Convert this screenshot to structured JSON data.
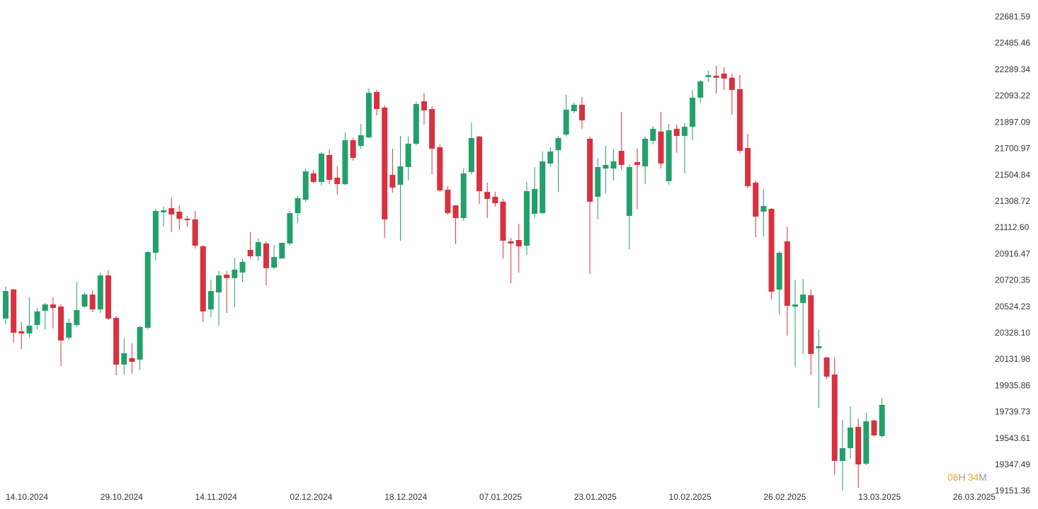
{
  "chart_data": {
    "type": "candlestick",
    "up_color": "#22a06b",
    "down_color": "#d8313f",
    "ylim": [
      19120,
      22810
    ],
    "yticks": [
      22681.59,
      22485.46,
      22289.34,
      22093.22,
      21897.09,
      21700.97,
      21504.84,
      21308.72,
      {
        "value": 21112.6,
        "label": "21112.60"
      },
      20916.47,
      20720.35,
      20524.23,
      {
        "value": 20328.1,
        "label": "20328.10"
      },
      20131.98,
      19935.86,
      19739.73,
      19543.61,
      19347.49,
      19151.36
    ],
    "countdown": [
      "08",
      "H",
      "34",
      "M"
    ],
    "categories": [
      "14.10.2024",
      null,
      null,
      null,
      null,
      null,
      null,
      null,
      null,
      null,
      null,
      null,
      "29.10.2024",
      null,
      null,
      null,
      null,
      null,
      null,
      null,
      null,
      null,
      null,
      null,
      "14.11.2024",
      null,
      null,
      null,
      null,
      null,
      null,
      null,
      null,
      null,
      null,
      null,
      "02.12.2024",
      null,
      null,
      null,
      null,
      null,
      null,
      null,
      null,
      null,
      null,
      null,
      "18.12.2024",
      null,
      null,
      null,
      null,
      null,
      null,
      null,
      null,
      null,
      null,
      null,
      "07.01.2025",
      null,
      null,
      null,
      null,
      null,
      null,
      null,
      null,
      null,
      null,
      null,
      "23.01.2025",
      null,
      null,
      null,
      null,
      null,
      null,
      null,
      null,
      null,
      null,
      null,
      "10.02.2025",
      null,
      null,
      null,
      null,
      null,
      null,
      null,
      null,
      null,
      null,
      null,
      "26.02.2025",
      null,
      null,
      null,
      null,
      null,
      null,
      null,
      null,
      null,
      null,
      null,
      "13.03.2025",
      null,
      null,
      null,
      null,
      null,
      null,
      null,
      null,
      null,
      null,
      null,
      "26.03.2025"
    ],
    "open": [
      20438,
      20654,
      20343,
      20327,
      20390,
      20496,
      20543,
      20527,
      20296,
      20390,
      20527,
      20617,
      20506,
      20759,
      20443,
      20095,
      20143,
      20132,
      20369,
      20928,
      21229,
      21260,
      21234,
      21181,
      21176,
      20976,
      20506,
      20633,
      20765,
      20739,
      20781,
      20949,
      20902,
      20997,
      20818,
      20886,
      20997,
      21223,
      21323,
      21519,
      21455,
      21656,
      21487,
      21439,
      21766,
      21724,
      21787,
      22125,
      22009,
      21508,
      21434,
      21566,
      21740,
      22056,
      21998,
      21714,
      21397,
      21281,
      21186,
      21529,
      21793,
      21381,
      21345,
      21308,
      21013,
      21023,
      20981,
      21218,
      21223,
      21592,
      21692,
      21808,
      21982,
      22030,
      21777,
      21345,
      21555,
      21555,
      21687,
      21202,
      21603,
      21571,
      21761,
      21830,
      21461,
      21851,
      21798,
      21866,
      22083,
      22236,
      22246,
      22262,
      22231,
      22146,
      21708,
      21450,
      21234,
      21255,
      20654,
      21013,
      20527,
      20554,
      20612,
      20216,
      20148,
      20021,
      19378,
      19473,
      19631,
      19357,
      19679,
      19563,
      null,
      null,
      null,
      null,
      null,
      null,
      null,
      null,
      null
    ],
    "high": [
      20675,
      20659,
      20412,
      20596,
      20517,
      20554,
      20596,
      20543,
      20438,
      20712,
      20628,
      20649,
      20781,
      20797,
      20459,
      20291,
      20254,
      20385,
      20939,
      21255,
      21271,
      21339,
      21281,
      21202,
      21239,
      20986,
      20728,
      20792,
      20792,
      20891,
      20881,
      21081,
      21034,
      21013,
      20986,
      21002,
      21239,
      21350,
      21555,
      21545,
      21677,
      21698,
      21571,
      21824,
      21782,
      21887,
      22151,
      22140,
      22025,
      21703,
      21798,
      21793,
      22051,
      22119,
      22019,
      21735,
      21424,
      21281,
      21555,
      21898,
      21798,
      21450,
      21381,
      21329,
      21039,
      21144,
      21455,
      21566,
      21682,
      21714,
      21798,
      22104,
      22046,
      22088,
      21793,
      21634,
      21724,
      21698,
      21977,
      21587,
      21703,
      21793,
      21872,
      21977,
      21887,
      21882,
      21893,
      22140,
      22214,
      22283,
      22320,
      22309,
      22262,
      22251,
      21814,
      21466,
      21403,
      21260,
      20939,
      21123,
      20728,
      20733,
      20654,
      20354,
      20153,
      20148,
      19684,
      19784,
      19694,
      19737,
      19684,
      19847,
      null,
      null,
      null,
      null,
      null,
      null,
      null,
      null,
      null
    ],
    "low": [
      20396,
      20259,
      20211,
      20296,
      20359,
      20354,
      20364,
      20085,
      20280,
      20375,
      20522,
      20485,
      20480,
      20427,
      20016,
      20021,
      20027,
      20053,
      20354,
      20870,
      21123,
      21081,
      21097,
      21123,
      20960,
      20412,
      20448,
      20385,
      20480,
      20522,
      20712,
      20886,
      20870,
      20686,
      20807,
      20881,
      20981,
      21150,
      21308,
      21445,
      21429,
      21439,
      21360,
      21429,
      21613,
      21703,
      21782,
      21951,
      21039,
      21376,
      21018,
      21466,
      21729,
      21882,
      21513,
      21381,
      21213,
      20992,
      21165,
      21513,
      21292,
      21186,
      21271,
      20886,
      20701,
      20781,
      20912,
      21186,
      21218,
      21571,
      21381,
      21793,
      21967,
      21851,
      20770,
      21176,
      21371,
      21466,
      21545,
      20954,
      21250,
      21439,
      21735,
      21555,
      21434,
      21671,
      21519,
      21766,
      22046,
      22199,
      22114,
      22140,
      21956,
      21671,
      21408,
      21044,
      21049,
      20580,
      20469,
      20311,
      20074,
      20174,
      20016,
      19774,
      19990,
      19273,
      19157,
      19394,
      19178,
      19347,
      19563,
      19552,
      null,
      null,
      null,
      null,
      null,
      null,
      null,
      null,
      null
    ],
    "close": [
      20643,
      20332,
      20327,
      20385,
      20491,
      20543,
      20517,
      20275,
      20406,
      20501,
      20617,
      20506,
      20759,
      20438,
      20095,
      20180,
      20116,
      20375,
      20933,
      21239,
      21244,
      21213,
      21181,
      21171,
      20981,
      20491,
      20643,
      20759,
      20739,
      20802,
      20860,
      20902,
      21007,
      20813,
      20896,
      21002,
      21223,
      21334,
      21534,
      21455,
      21666,
      21471,
      21439,
      21766,
      21634,
      21803,
      22119,
      21998,
      21176,
      21413,
      21571,
      21740,
      22035,
      21988,
      21703,
      21392,
      21223,
      21186,
      21519,
      21782,
      21387,
      21329,
      21297,
      21018,
      20997,
      20976,
      21387,
      21403,
      21608,
      21682,
      21782,
      21993,
      22030,
      21914,
      21308,
      21566,
      21582,
      21608,
      21582,
      21566,
      21582,
      21777,
      21851,
      21592,
      21840,
      21798,
      21866,
      22083,
      22204,
      22251,
      22231,
      22225,
      22140,
      21687,
      21424,
      21197,
      21276,
      20638,
      20928,
      20533,
      20543,
      20617,
      20174,
      20232,
      20005,
      19378,
      19473,
      19626,
      19352,
      19673,
      19568,
      19795,
      null,
      null,
      null,
      null,
      null,
      null,
      null,
      null,
      null
    ]
  }
}
